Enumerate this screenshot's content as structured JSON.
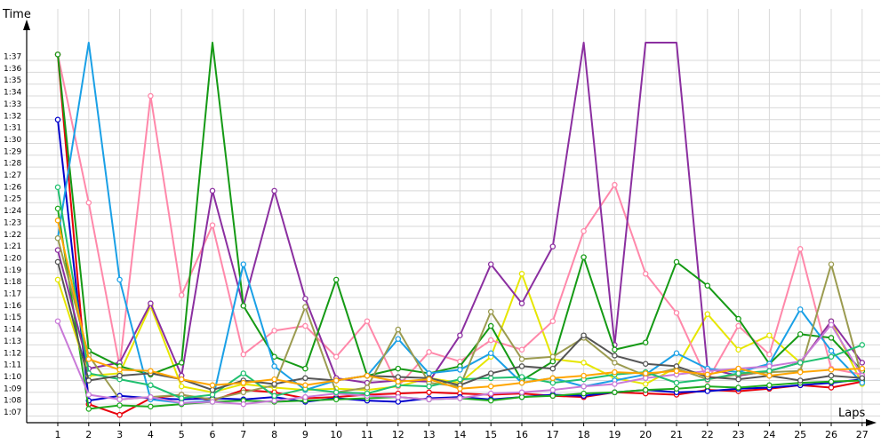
{
  "chart_data": {
    "type": "line",
    "xlabel": "Laps",
    "ylabel": "Time",
    "x": [
      1,
      2,
      3,
      4,
      5,
      6,
      7,
      8,
      9,
      10,
      11,
      12,
      13,
      14,
      15,
      16,
      17,
      18,
      19,
      20,
      21,
      22,
      23,
      24,
      25,
      26,
      27
    ],
    "yticks": [
      "1:07",
      "1:08",
      "1:09",
      "1:10",
      "1:11",
      "1:12",
      "1:13",
      "1:14",
      "1:15",
      "1:16",
      "1:17",
      "1:18",
      "1:19",
      "1:20",
      "1:21",
      "1:22",
      "1:23",
      "1:24",
      "1:25",
      "1:26",
      "1:27",
      "1:28",
      "1:29",
      "1:30",
      "1:31",
      "1:32",
      "1:33",
      "1:34",
      "1:35",
      "1:36",
      "1:37"
    ],
    "ylim": [
      66.2,
      98.5
    ],
    "grid": true,
    "marker": "hollow-circle",
    "series": [
      {
        "color": "#e8000b",
        "values": [
          97.5,
          68.0,
          67.1,
          68.5,
          68.8,
          68.3,
          69.2,
          69.0,
          68.5,
          68.6,
          68.8,
          68.9,
          69.0,
          68.9,
          68.8,
          68.9,
          68.7,
          68.6,
          69.0,
          68.9,
          68.8,
          69.2,
          69.1,
          69.3,
          69.6,
          69.4,
          69.9
        ]
      },
      {
        "color": "#0000cc",
        "values": [
          92.0,
          68.3,
          68.7,
          68.5,
          68.4,
          68.5,
          68.4,
          68.6,
          68.2,
          68.5,
          68.3,
          68.2,
          68.5,
          68.6,
          68.4,
          68.6,
          68.8,
          68.7,
          69.0,
          69.2,
          69.0,
          69.1,
          69.3,
          69.4,
          69.6,
          69.8,
          70.1
        ]
      },
      {
        "color": "#1faa1f",
        "values": [
          84.5,
          67.6,
          67.9,
          67.8,
          68.0,
          68.2,
          68.3,
          68.2,
          68.3,
          68.4,
          68.5,
          68.6,
          68.4,
          68.5,
          68.3,
          68.6,
          68.7,
          68.9,
          69.0,
          69.2,
          69.3,
          69.5,
          69.4,
          69.6,
          69.8,
          69.9,
          70.0
        ]
      },
      {
        "color": "#e6e600",
        "values": [
          78.5,
          70.4,
          70.6,
          76.3,
          69.5,
          69.0,
          69.7,
          69.4,
          69.2,
          69.3,
          69.2,
          69.5,
          70.2,
          69.8,
          72.0,
          79.0,
          71.8,
          71.5,
          70.2,
          69.7,
          71.1,
          75.6,
          72.6,
          73.8,
          71.5,
          75.0,
          69.7
        ]
      },
      {
        "color": "#ff88aa",
        "values": [
          97.5,
          85.0,
          71.2,
          94.0,
          77.2,
          83.1,
          72.2,
          74.2,
          74.6,
          72.0,
          75.0,
          69.5,
          72.4,
          71.6,
          73.4,
          72.6,
          75.0,
          82.6,
          86.5,
          79.0,
          75.7,
          70.0,
          74.6,
          72.2,
          81.1,
          71.0,
          70.5
        ]
      },
      {
        "color": "#8b2fa0",
        "values": [
          81.0,
          71.0,
          71.5,
          76.5,
          70.4,
          86.0,
          76.3,
          86.0,
          76.9,
          70.2,
          69.8,
          70.0,
          69.9,
          73.8,
          79.8,
          76.5,
          81.3,
          98.5,
          73.0,
          98.5,
          98.5,
          71.0,
          70.4,
          70.8,
          71.5,
          75.0,
          71.5
        ]
      },
      {
        "color": "#159a15",
        "values": [
          97.5,
          72.5,
          71.2,
          70.5,
          71.5,
          98.5,
          76.3,
          72.0,
          71.0,
          78.5,
          70.4,
          71.0,
          70.6,
          71.2,
          74.6,
          70.0,
          71.6,
          80.4,
          72.6,
          73.2,
          80.0,
          78.0,
          75.2,
          71.4,
          73.9,
          73.6,
          70.8
        ]
      },
      {
        "color": "#1aa0e6",
        "values": [
          82.0,
          98.5,
          78.5,
          68.4,
          68.1,
          68.3,
          79.8,
          71.2,
          69.2,
          70.0,
          70.4,
          73.5,
          70.6,
          70.9,
          72.3,
          69.8,
          70.2,
          69.5,
          70.0,
          70.5,
          72.3,
          71.0,
          70.7,
          71.4,
          76.0,
          72.5,
          69.8
        ]
      },
      {
        "color": "#9b9b50",
        "values": [
          82.0,
          72.1,
          68.4,
          68.6,
          68.8,
          68.4,
          69.0,
          69.6,
          76.2,
          69.0,
          69.4,
          74.3,
          69.8,
          69.5,
          75.8,
          71.8,
          72.0,
          73.6,
          71.5,
          70.4,
          71.0,
          70.1,
          70.5,
          70.7,
          70.8,
          79.8,
          70.2
        ]
      },
      {
        "color": "#c97ad8",
        "values": [
          75.0,
          68.8,
          68.4,
          68.6,
          68.1,
          68.2,
          68.0,
          68.3,
          68.6,
          68.9,
          68.7,
          68.6,
          68.4,
          68.5,
          68.9,
          69.0,
          69.2,
          69.5,
          69.7,
          70.2,
          70.5,
          70.8,
          71.0,
          71.2,
          71.6,
          74.7,
          70.4
        ]
      },
      {
        "color": "#20c070",
        "values": [
          86.3,
          70.6,
          70.1,
          69.6,
          68.5,
          68.8,
          70.6,
          68.7,
          69.3,
          69.0,
          68.9,
          69.6,
          69.5,
          70.1,
          70.2,
          70.3,
          69.8,
          70.1,
          70.5,
          70.7,
          69.8,
          70.1,
          70.6,
          70.8,
          71.5,
          72.0,
          73.0
        ]
      },
      {
        "color": "#555555",
        "values": [
          80.0,
          70.0,
          70.4,
          70.6,
          70.1,
          69.2,
          70.0,
          69.7,
          70.2,
          70.0,
          70.4,
          70.3,
          70.2,
          69.6,
          70.6,
          71.2,
          71.0,
          73.8,
          72.1,
          71.4,
          71.2,
          70.3,
          70.1,
          70.4,
          70.0,
          70.4,
          70.2
        ]
      },
      {
        "color": "#ffa500",
        "values": [
          83.5,
          71.8,
          70.9,
          70.8,
          70.1,
          69.6,
          69.8,
          70.1,
          69.6,
          70.0,
          70.4,
          69.9,
          70.1,
          69.3,
          69.5,
          69.8,
          70.2,
          70.4,
          70.7,
          70.6,
          70.8,
          70.5,
          71.0,
          70.4,
          70.7,
          70.9,
          71.0
        ]
      }
    ]
  }
}
